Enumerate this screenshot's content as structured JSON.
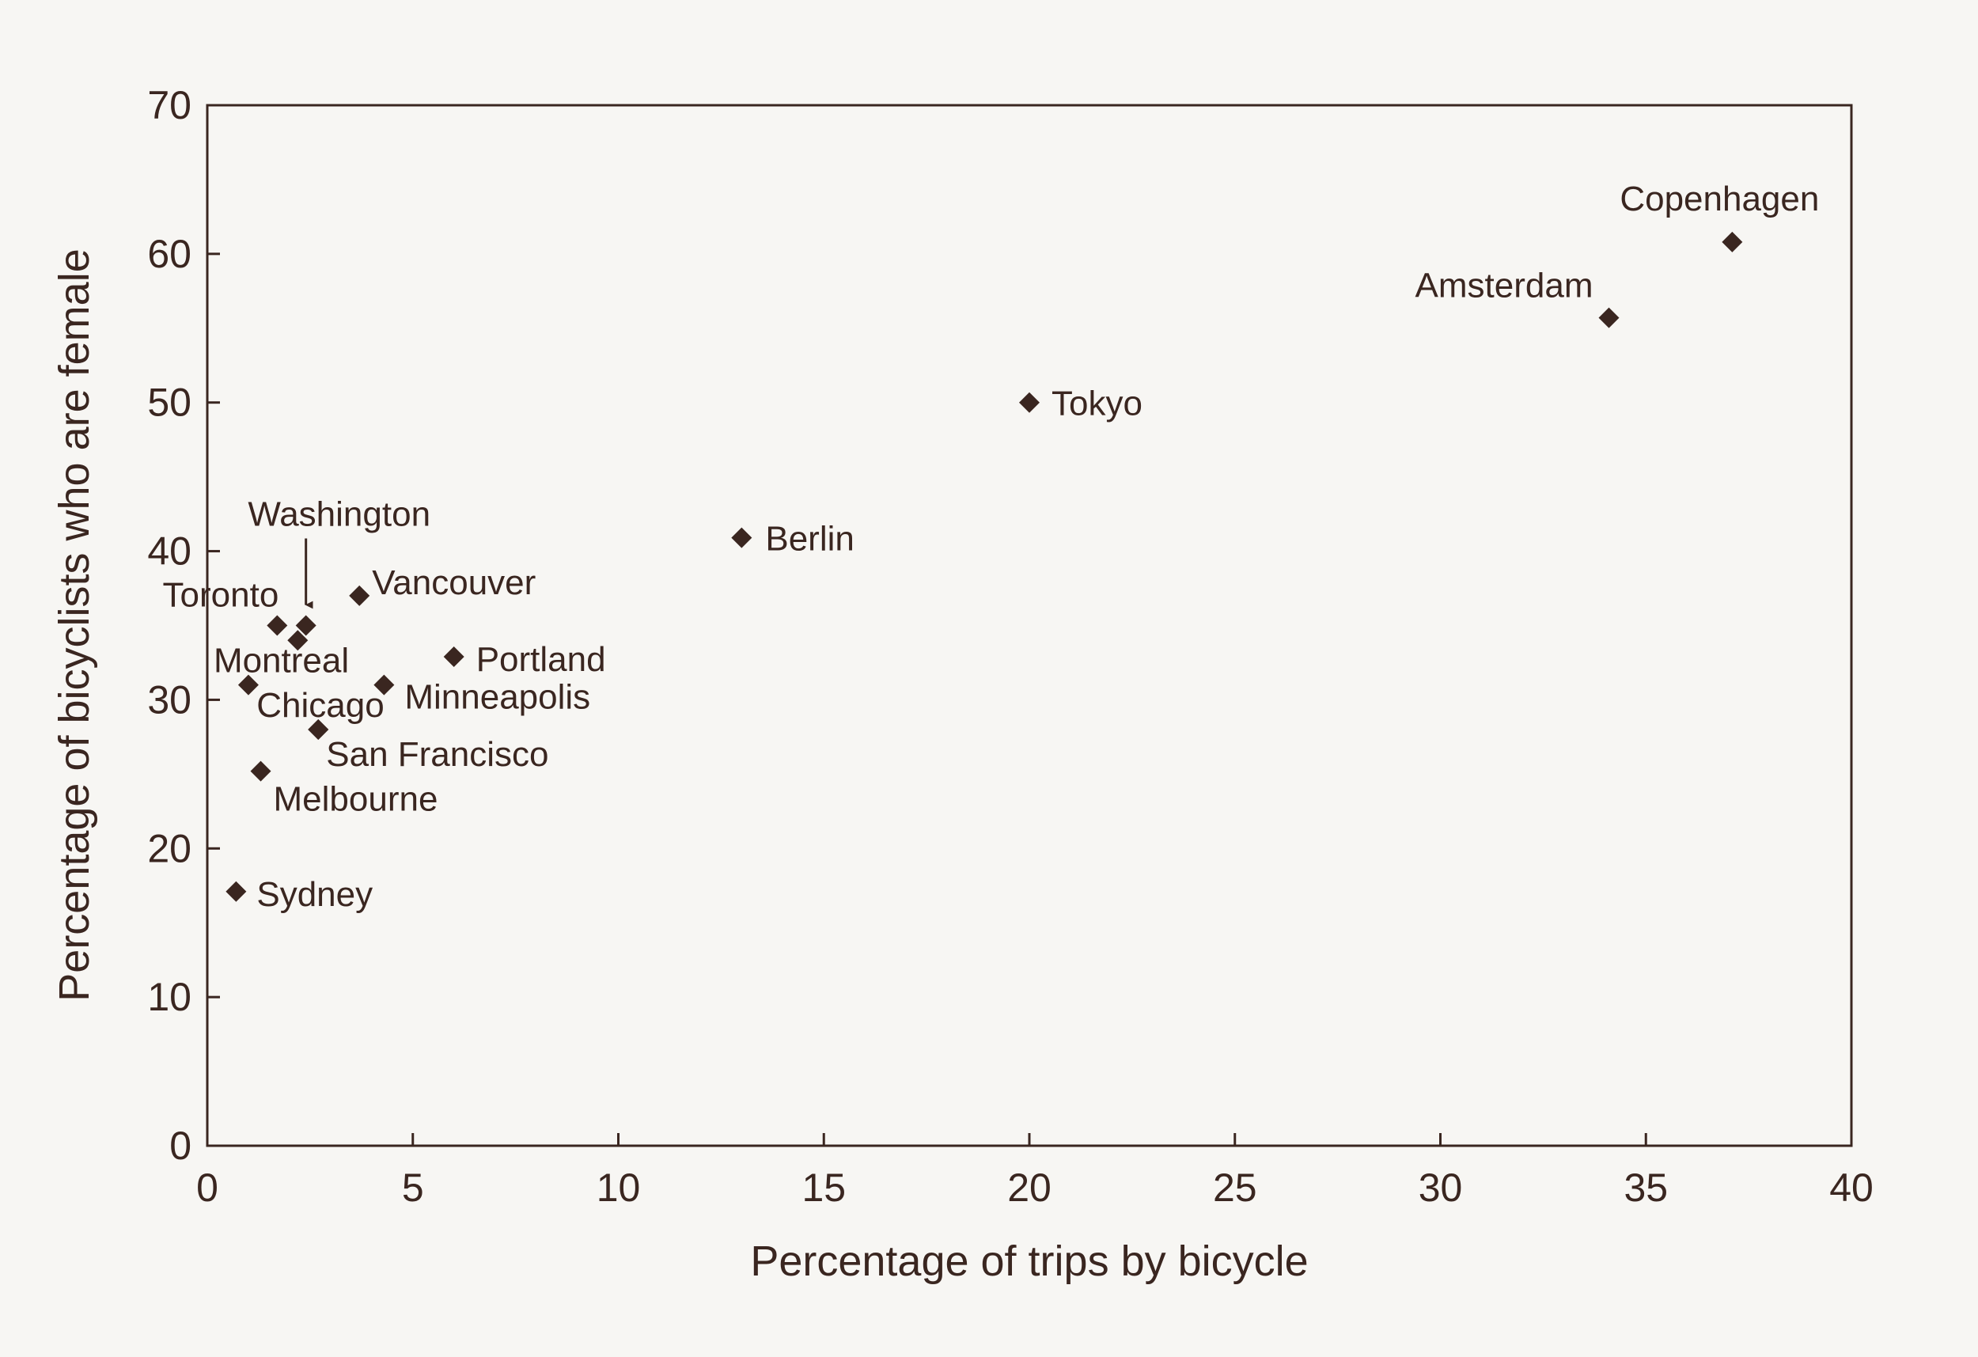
{
  "chart_data": {
    "type": "scatter",
    "xlabel": "Percentage of trips by bicycle",
    "ylabel": "Percentage of bicyclists who are female",
    "xlim": [
      0,
      40
    ],
    "ylim": [
      0,
      70
    ],
    "xticks": [
      0,
      5,
      10,
      15,
      20,
      25,
      30,
      35,
      40
    ],
    "yticks": [
      0,
      10,
      20,
      30,
      40,
      50,
      60,
      70
    ],
    "grid": false,
    "marker": "diamond",
    "colors": {
      "marker": "#3a2620",
      "axis": "#3a2620",
      "background": "#f7f6f3"
    },
    "points": [
      {
        "label": "Copenhagen",
        "x": 37.1,
        "y": 60.8
      },
      {
        "label": "Amsterdam",
        "x": 34.1,
        "y": 55.7
      },
      {
        "label": "Tokyo",
        "x": 20.0,
        "y": 50.0
      },
      {
        "label": "Berlin",
        "x": 13.0,
        "y": 40.9
      },
      {
        "label": "Vancouver",
        "x": 3.7,
        "y": 37.0
      },
      {
        "label": "Toronto",
        "x": 1.7,
        "y": 35.0
      },
      {
        "label": "Washington",
        "x": 2.4,
        "y": 35.0
      },
      {
        "label": "",
        "x": 2.2,
        "y": 34.0
      },
      {
        "label": "Portland",
        "x": 6.0,
        "y": 32.9
      },
      {
        "label": "Montreal",
        "x": 1.0,
        "y": 31.0
      },
      {
        "label": "Minneapolis",
        "x": 4.3,
        "y": 31.0
      },
      {
        "label": "Chicago",
        "x": 2.7,
        "y": 28.0
      },
      {
        "label": "San Francisco",
        "x": 2.7,
        "y": 28.0
      },
      {
        "label": "Melbourne",
        "x": 1.3,
        "y": 25.2
      },
      {
        "label": "Sydney",
        "x": 0.7,
        "y": 17.1
      }
    ]
  }
}
